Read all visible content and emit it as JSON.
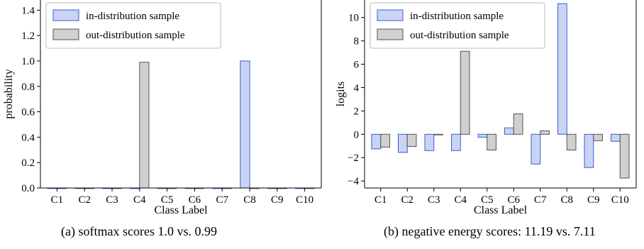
{
  "chart_data": [
    {
      "type": "bar",
      "caption": "(a) softmax scores 1.0 vs. 0.99",
      "xlabel": "Class Label",
      "ylabel": "probability",
      "ylim": [
        0,
        1.48
      ],
      "yticks": [
        0.0,
        0.2,
        0.4,
        0.6,
        0.8,
        1.0,
        1.2,
        1.4
      ],
      "ytick_labels": [
        "0.0",
        "0.2",
        "0.4",
        "0.6",
        "0.8",
        "1.0",
        "1.2",
        "1.4"
      ],
      "categories": [
        "C1",
        "C2",
        "C3",
        "C4",
        "C5",
        "C6",
        "C7",
        "C8",
        "C9",
        "C10"
      ],
      "legend_position": "top-left",
      "series": [
        {
          "name": "in-distribution sample",
          "color": "#c9d4f4",
          "edge": "#3b5bd6",
          "values": [
            0.0,
            0.0,
            0.0,
            0.0,
            0.0,
            0.0,
            0.0,
            1.0,
            0.0,
            0.0
          ]
        },
        {
          "name": "out-distribution sample",
          "color": "#d0d0d0",
          "edge": "#555555",
          "values": [
            0.0,
            0.0,
            0.0,
            0.99,
            0.0,
            0.0,
            0.0,
            0.0,
            0.0,
            0.0
          ]
        }
      ]
    },
    {
      "type": "bar",
      "caption": "(b) negative energy scores: 11.19 vs. 7.11",
      "xlabel": "Class Label",
      "ylabel": "logits",
      "ylim": [
        -4.6,
        11.5
      ],
      "yticks": [
        -4,
        -2,
        0,
        2,
        4,
        6,
        8,
        10
      ],
      "ytick_labels": [
        "−4",
        "−2",
        "0",
        "2",
        "4",
        "6",
        "8",
        "10"
      ],
      "categories": [
        "C1",
        "C2",
        "C3",
        "C4",
        "C5",
        "C6",
        "C7",
        "C8",
        "C9",
        "C10"
      ],
      "legend_position": "top-left",
      "series": [
        {
          "name": "in-distribution sample",
          "color": "#c9d4f4",
          "edge": "#3b5bd6",
          "values": [
            -1.25,
            -1.55,
            -1.4,
            -1.4,
            -0.25,
            0.55,
            -2.55,
            11.19,
            -2.85,
            -0.6
          ]
        },
        {
          "name": "out-distribution sample",
          "color": "#d0d0d0",
          "edge": "#555555",
          "values": [
            -1.1,
            -1.05,
            -0.05,
            7.11,
            -1.35,
            1.75,
            0.3,
            -1.35,
            -0.55,
            -3.75
          ]
        }
      ]
    }
  ]
}
